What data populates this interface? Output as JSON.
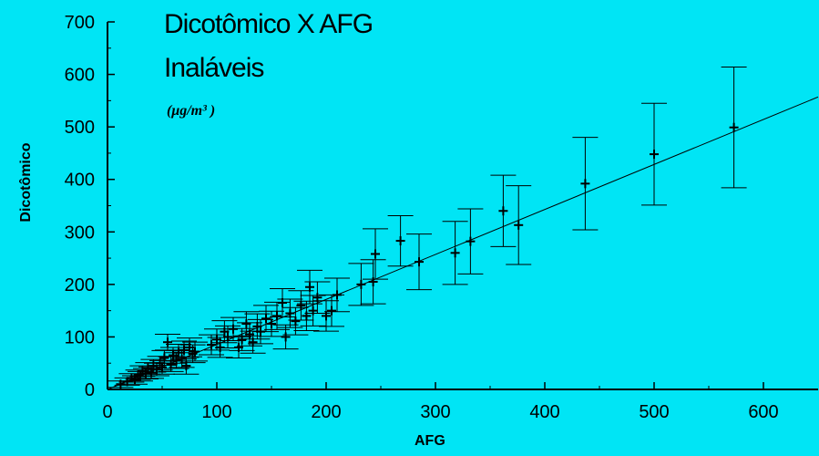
{
  "chart_data": {
    "type": "scatter",
    "title_lines": [
      "Dicotômico X AFG",
      "Inaláveis"
    ],
    "units": "(μg/m³  )",
    "xlabel": "AFG",
    "ylabel": "Dicotômico",
    "xlim": [
      0,
      650
    ],
    "ylim": [
      0,
      700
    ],
    "x_ticks": [
      0,
      100,
      200,
      300,
      400,
      500,
      600
    ],
    "y_ticks": [
      0,
      100,
      200,
      300,
      400,
      500,
      600,
      700
    ],
    "grid": false,
    "legend": "none",
    "fit_line": {
      "x": [
        0,
        650
      ],
      "y": [
        0,
        557
      ]
    },
    "series": [
      {
        "points": [
          {
            "x": 12,
            "y": 10,
            "err": 6
          },
          {
            "x": 18,
            "y": 15,
            "err": 7
          },
          {
            "x": 22,
            "y": 22,
            "err": 8
          },
          {
            "x": 25,
            "y": 18,
            "err": 8
          },
          {
            "x": 28,
            "y": 28,
            "err": 9
          },
          {
            "x": 30,
            "y": 25,
            "err": 9
          },
          {
            "x": 32,
            "y": 35,
            "err": 10
          },
          {
            "x": 35,
            "y": 30,
            "err": 10
          },
          {
            "x": 37,
            "y": 40,
            "err": 11
          },
          {
            "x": 40,
            "y": 32,
            "err": 11
          },
          {
            "x": 42,
            "y": 45,
            "err": 12
          },
          {
            "x": 45,
            "y": 38,
            "err": 12
          },
          {
            "x": 48,
            "y": 50,
            "err": 13
          },
          {
            "x": 50,
            "y": 42,
            "err": 13
          },
          {
            "x": 52,
            "y": 60,
            "err": 14
          },
          {
            "x": 55,
            "y": 90,
            "err": 15
          },
          {
            "x": 58,
            "y": 48,
            "err": 14
          },
          {
            "x": 60,
            "y": 65,
            "err": 15
          },
          {
            "x": 63,
            "y": 55,
            "err": 15
          },
          {
            "x": 65,
            "y": 70,
            "err": 16
          },
          {
            "x": 68,
            "y": 58,
            "err": 16
          },
          {
            "x": 70,
            "y": 75,
            "err": 17
          },
          {
            "x": 72,
            "y": 45,
            "err": 16
          },
          {
            "x": 75,
            "y": 80,
            "err": 18
          },
          {
            "x": 78,
            "y": 68,
            "err": 17
          },
          {
            "x": 80,
            "y": 72,
            "err": 18
          },
          {
            "x": 95,
            "y": 85,
            "err": 19
          },
          {
            "x": 100,
            "y": 95,
            "err": 20
          },
          {
            "x": 103,
            "y": 80,
            "err": 19
          },
          {
            "x": 107,
            "y": 110,
            "err": 21
          },
          {
            "x": 110,
            "y": 100,
            "err": 21
          },
          {
            "x": 115,
            "y": 115,
            "err": 22
          },
          {
            "x": 120,
            "y": 80,
            "err": 20
          },
          {
            "x": 123,
            "y": 95,
            "err": 21
          },
          {
            "x": 127,
            "y": 125,
            "err": 23
          },
          {
            "x": 130,
            "y": 105,
            "err": 22
          },
          {
            "x": 133,
            "y": 90,
            "err": 21
          },
          {
            "x": 137,
            "y": 120,
            "err": 24
          },
          {
            "x": 140,
            "y": 110,
            "err": 23
          },
          {
            "x": 145,
            "y": 135,
            "err": 25
          },
          {
            "x": 150,
            "y": 125,
            "err": 24
          },
          {
            "x": 155,
            "y": 140,
            "err": 26
          },
          {
            "x": 160,
            "y": 165,
            "err": 27
          },
          {
            "x": 163,
            "y": 100,
            "err": 23
          },
          {
            "x": 167,
            "y": 145,
            "err": 27
          },
          {
            "x": 172,
            "y": 130,
            "err": 26
          },
          {
            "x": 177,
            "y": 160,
            "err": 28
          },
          {
            "x": 182,
            "y": 140,
            "err": 28
          },
          {
            "x": 185,
            "y": 195,
            "err": 32
          },
          {
            "x": 188,
            "y": 150,
            "err": 29
          },
          {
            "x": 192,
            "y": 175,
            "err": 30
          },
          {
            "x": 200,
            "y": 140,
            "err": 29
          },
          {
            "x": 205,
            "y": 150,
            "err": 30
          },
          {
            "x": 210,
            "y": 180,
            "err": 32
          },
          {
            "x": 232,
            "y": 200,
            "err": 40
          },
          {
            "x": 243,
            "y": 205,
            "err": 42
          },
          {
            "x": 245,
            "y": 258,
            "err": 48
          },
          {
            "x": 268,
            "y": 283,
            "err": 48
          },
          {
            "x": 285,
            "y": 243,
            "err": 53
          },
          {
            "x": 318,
            "y": 260,
            "err": 60
          },
          {
            "x": 332,
            "y": 282,
            "err": 62
          },
          {
            "x": 362,
            "y": 340,
            "err": 68
          },
          {
            "x": 376,
            "y": 313,
            "err": 75
          },
          {
            "x": 437,
            "y": 392,
            "err": 88
          },
          {
            "x": 500,
            "y": 448,
            "err": 97
          },
          {
            "x": 573,
            "y": 499,
            "err": 115
          }
        ]
      }
    ]
  }
}
